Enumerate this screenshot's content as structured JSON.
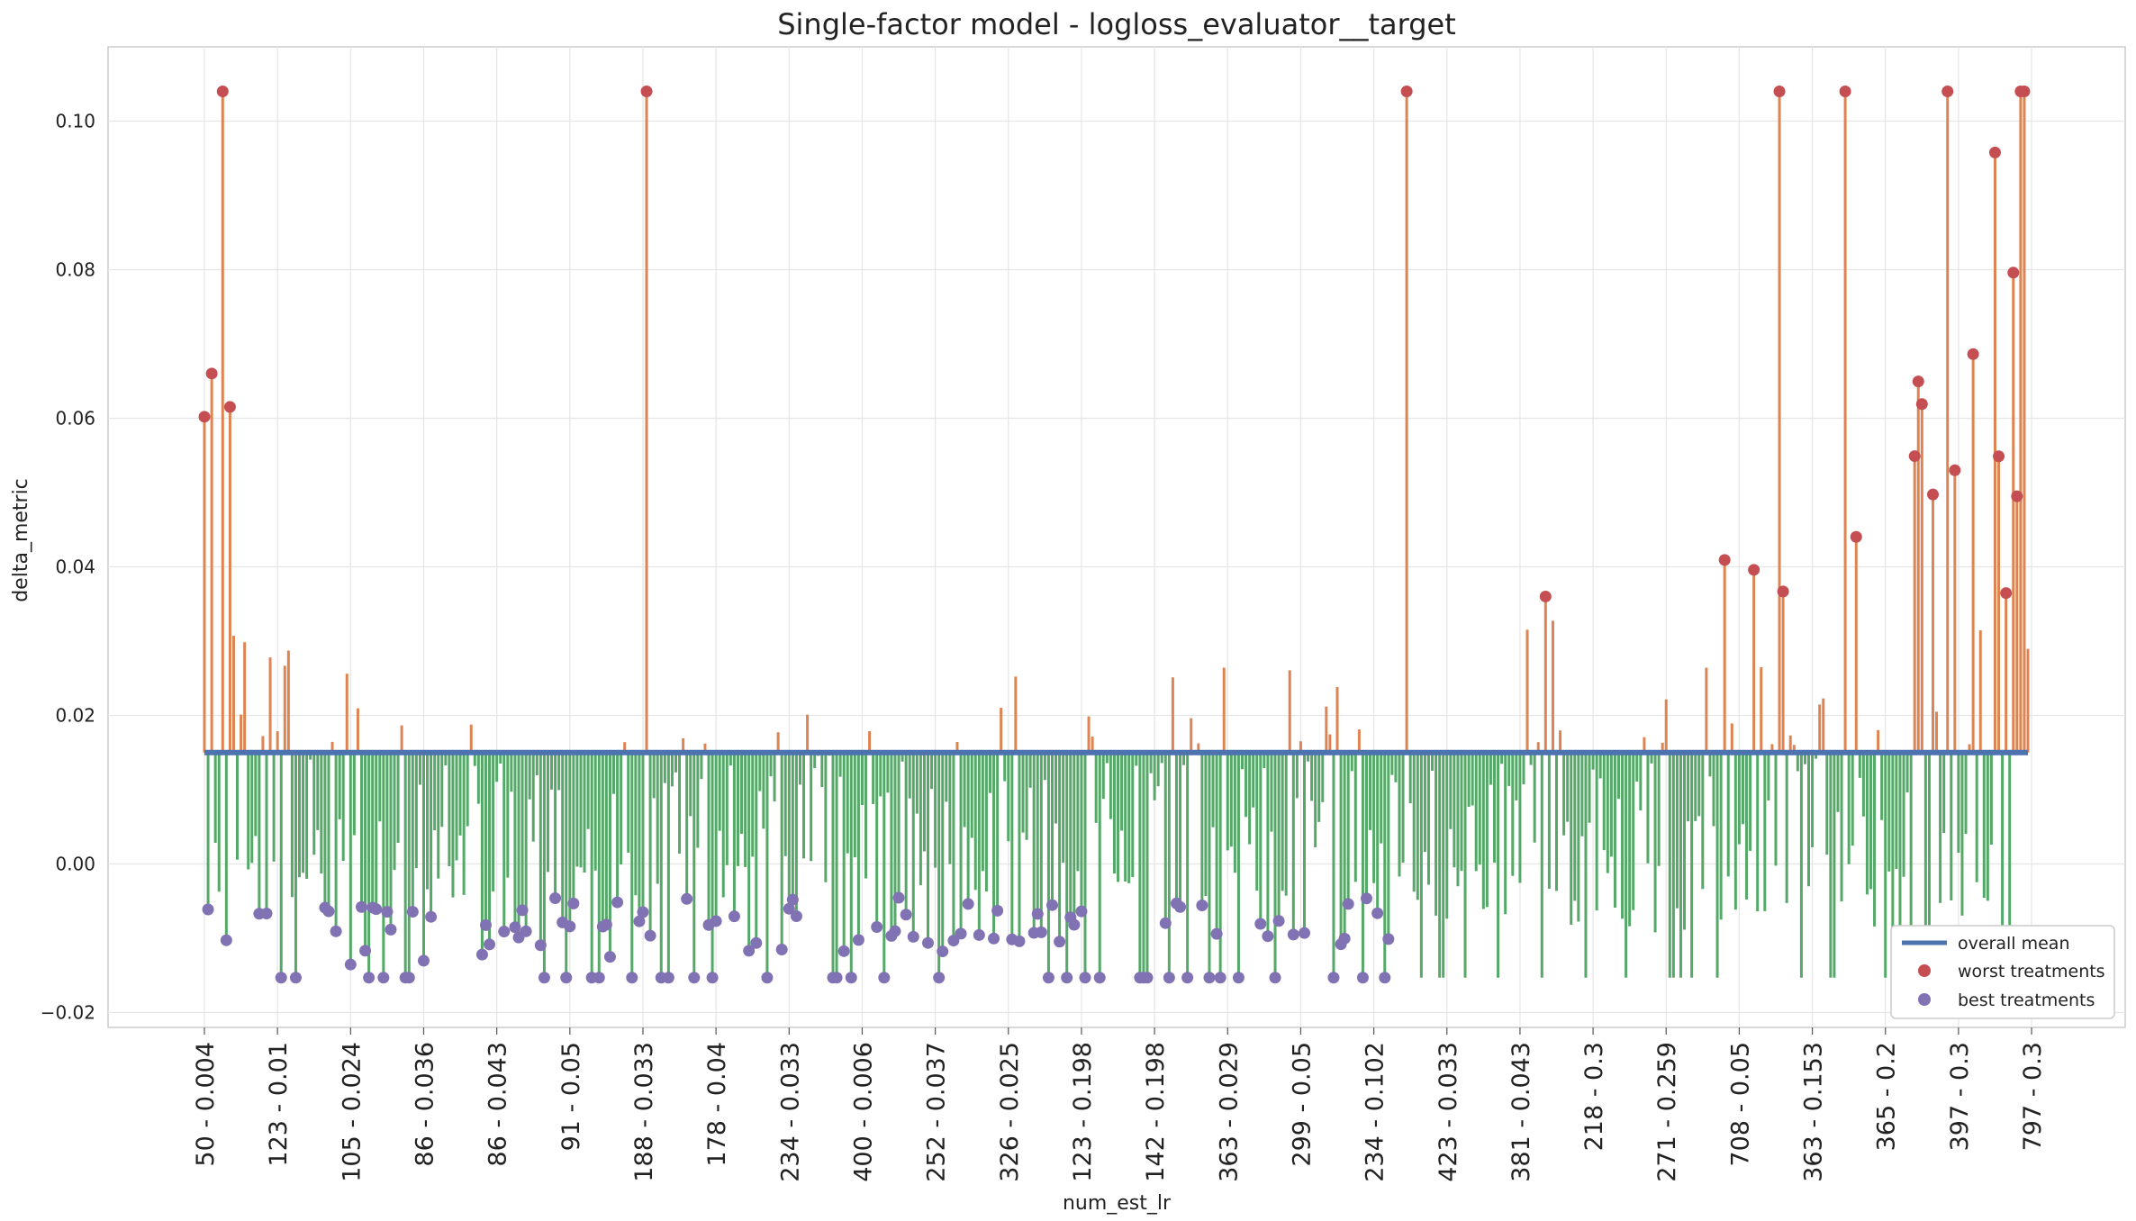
{
  "chart_data": {
    "type": "line",
    "title": "Single-factor model - logloss_evaluator__target",
    "xlabel": "num_est_lr",
    "ylabel": "delta_metric",
    "ylim": [
      -0.022,
      0.11
    ],
    "yticks": [
      -0.02,
      0.0,
      0.02,
      0.04,
      0.06,
      0.08,
      0.1
    ],
    "ytick_labels": [
      "−0.02",
      "0.00",
      "0.02",
      "0.04",
      "0.06",
      "0.08",
      "0.10"
    ],
    "xtick_labels": [
      "50 - 0.004",
      "123 - 0.01",
      "105 - 0.024",
      "86 - 0.036",
      "86 - 0.043",
      "91 - 0.05",
      "188 - 0.033",
      "178 - 0.04",
      "234 - 0.033",
      "400 - 0.006",
      "252 - 0.037",
      "326 - 0.025",
      "123 - 0.198",
      "142 - 0.198",
      "363 - 0.029",
      "299 - 0.05",
      "234 - 0.102",
      "423 - 0.033",
      "381 - 0.043",
      "218 - 0.3",
      "271 - 0.259",
      "708 - 0.05",
      "363 - 0.153",
      "365 - 0.2",
      "397 - 0.3",
      "797 - 0.3"
    ],
    "xtick_step": 20,
    "num_treatments": 500,
    "overall_mean": 0.015,
    "grid": true,
    "legend_placement": "lower-right",
    "colors": {
      "overall_mean": "#4c72b0",
      "above_mean_stem": "#dd8452",
      "below_mean_stem": "#55a868",
      "worst_treatments": "#c44e52",
      "best_treatments": "#8172b3",
      "grid": "#e5e5e5"
    },
    "series": [
      {
        "name": "overall mean",
        "kind": "line",
        "value": 0.015
      },
      {
        "name": "worst treatments",
        "kind": "scatter",
        "range": [
          0.037,
          0.104
        ]
      },
      {
        "name": "best treatments",
        "kind": "scatter",
        "range": [
          -0.0155,
          -0.005
        ]
      }
    ]
  }
}
